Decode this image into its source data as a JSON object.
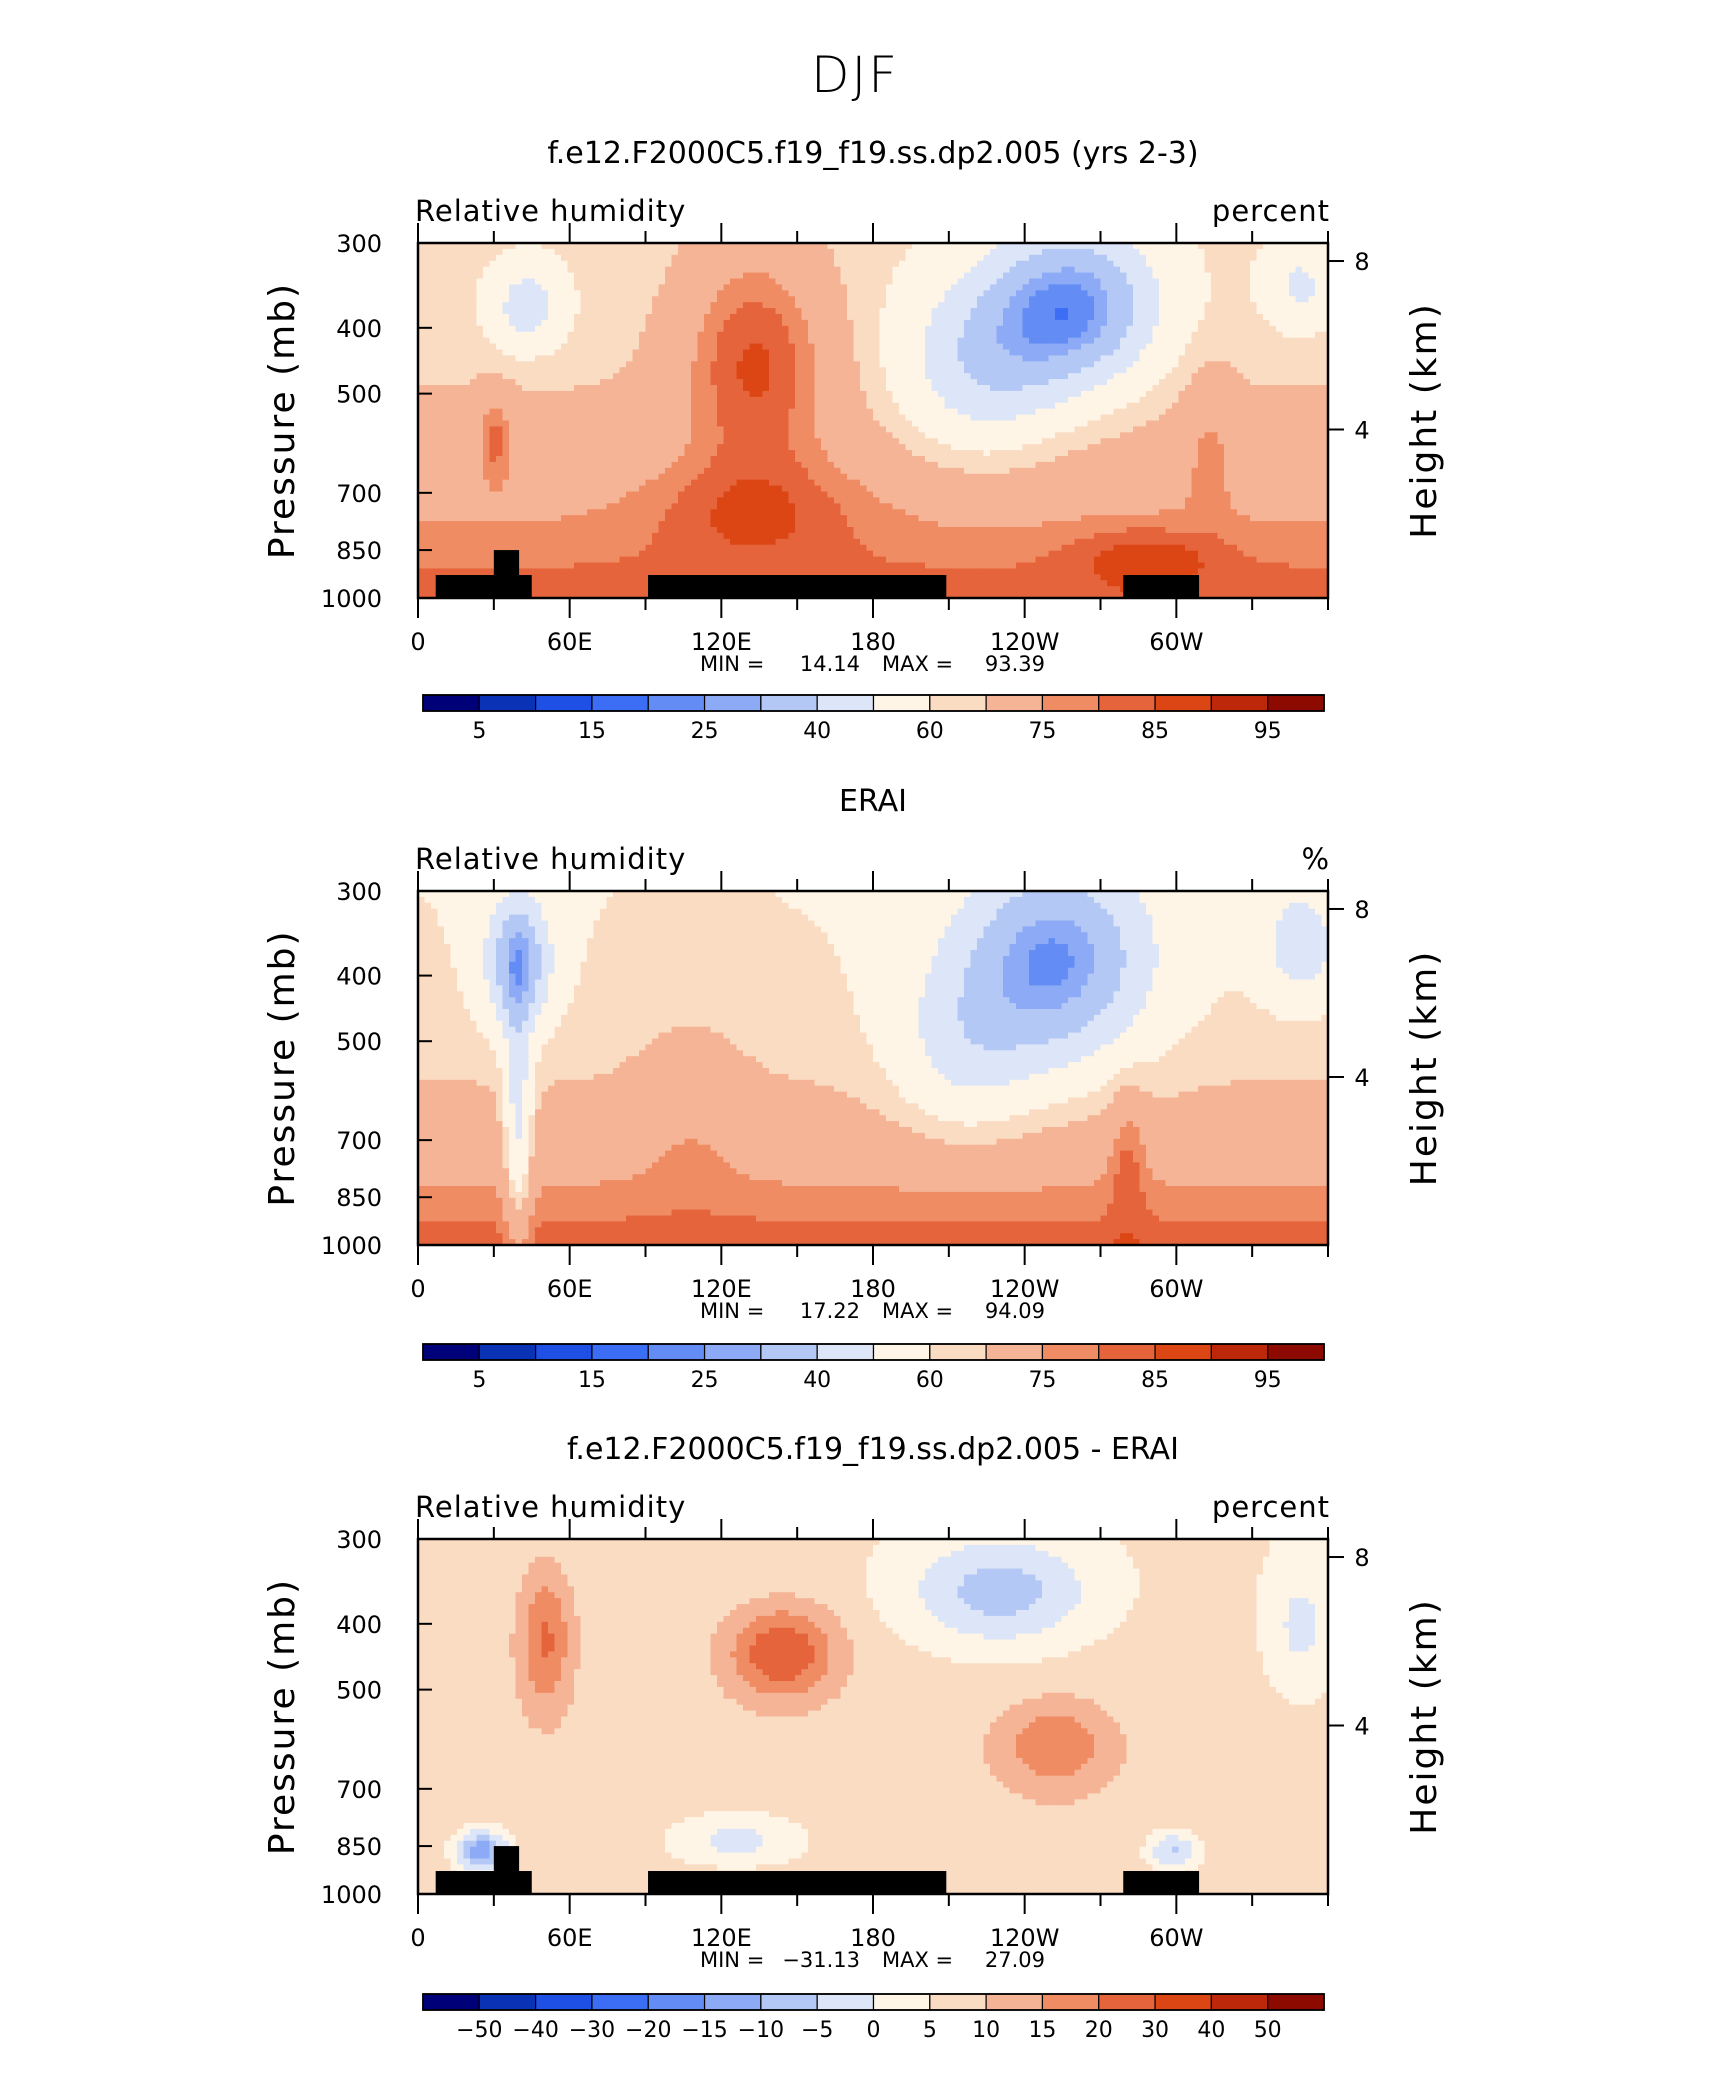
{
  "figure": {
    "title": "DJF"
  },
  "chart_data": [
    {
      "type": "heatmap",
      "panel_title": "f.e12.F2000C5.f19_f19.ss.dp2.005 (yrs 2-3)",
      "variable_label": "Relative humidity",
      "units_label": "percent",
      "xlabel": "",
      "ylabel": "Pressure (mb)",
      "y2label": "Height (km)",
      "x_ticks": [
        "0",
        "60E",
        "120E",
        "180",
        "120W",
        "60W"
      ],
      "x_tick_values": [
        0,
        60,
        120,
        180,
        240,
        300
      ],
      "xlim": [
        0,
        360
      ],
      "y_ticks": [
        "300",
        "400",
        "500",
        "700",
        "850",
        "1000"
      ],
      "y_tick_values": [
        300,
        400,
        500,
        700,
        850,
        1000
      ],
      "ylim": [
        1000,
        300
      ],
      "y2_ticks": [
        "4",
        "8"
      ],
      "y2_tick_values": [
        4,
        8
      ],
      "min_label": "MIN =",
      "min_value": "14.14",
      "max_label": "MAX =",
      "max_value": "93.39",
      "min_num": 14.14,
      "max_num": 93.39,
      "colorbar_levels": [
        "5",
        "10",
        "15",
        "20",
        "25",
        "30",
        "40",
        "50",
        "60",
        "65",
        "75",
        "80",
        "85",
        "90",
        "95"
      ],
      "colorbar_label_indices": [
        0,
        2,
        4,
        6,
        8,
        10,
        12,
        14
      ],
      "colorbar_colors": [
        "#000078",
        "#0a32b4",
        "#1e50e6",
        "#3c6ef5",
        "#648cf5",
        "#8caaf5",
        "#b4c8f5",
        "#dce6f8",
        "#fff5e6",
        "#fadcc3",
        "#f5b496",
        "#f08c64",
        "#e6643c",
        "#dc4614",
        "#be280a",
        "#8c0a00"
      ],
      "land_blocks_lon": [
        [
          7,
          45
        ],
        [
          30,
          40
        ],
        [
          91,
          209
        ],
        [
          279,
          309
        ]
      ],
      "land_blocks_p": [
        [
          925,
          1000
        ],
        [
          850,
          1000
        ],
        [
          925,
          1000
        ],
        [
          925,
          1000
        ]
      ]
    },
    {
      "type": "heatmap",
      "panel_title": "ERAI",
      "variable_label": "Relative humidity",
      "units_label": "%",
      "xlabel": "",
      "ylabel": "Pressure (mb)",
      "y2label": "Height (km)",
      "x_ticks": [
        "0",
        "60E",
        "120E",
        "180",
        "120W",
        "60W"
      ],
      "x_tick_values": [
        0,
        60,
        120,
        180,
        240,
        300
      ],
      "xlim": [
        0,
        360
      ],
      "y_ticks": [
        "300",
        "400",
        "500",
        "700",
        "850",
        "1000"
      ],
      "y_tick_values": [
        300,
        400,
        500,
        700,
        850,
        1000
      ],
      "ylim": [
        1000,
        300
      ],
      "y2_ticks": [
        "4",
        "8"
      ],
      "y2_tick_values": [
        4,
        8
      ],
      "min_label": "MIN =",
      "min_value": "17.22",
      "max_label": "MAX =",
      "max_value": "94.09",
      "min_num": 17.22,
      "max_num": 94.09,
      "colorbar_levels": [
        "5",
        "10",
        "15",
        "20",
        "25",
        "30",
        "40",
        "50",
        "60",
        "65",
        "75",
        "80",
        "85",
        "90",
        "95"
      ],
      "colorbar_label_indices": [
        0,
        2,
        4,
        6,
        8,
        10,
        12,
        14
      ],
      "colorbar_colors": [
        "#000078",
        "#0a32b4",
        "#1e50e6",
        "#3c6ef5",
        "#648cf5",
        "#8caaf5",
        "#b4c8f5",
        "#dce6f8",
        "#fff5e6",
        "#fadcc3",
        "#f5b496",
        "#f08c64",
        "#e6643c",
        "#dc4614",
        "#be280a",
        "#8c0a00"
      ],
      "land_blocks_lon": [],
      "land_blocks_p": []
    },
    {
      "type": "heatmap",
      "panel_title": "f.e12.F2000C5.f19_f19.ss.dp2.005 - ERAI",
      "variable_label": "Relative humidity",
      "units_label": "percent",
      "xlabel": "",
      "ylabel": "Pressure (mb)",
      "y2label": "Height (km)",
      "x_ticks": [
        "0",
        "60E",
        "120E",
        "180",
        "120W",
        "60W"
      ],
      "x_tick_values": [
        0,
        60,
        120,
        180,
        240,
        300
      ],
      "xlim": [
        0,
        360
      ],
      "y_ticks": [
        "300",
        "400",
        "500",
        "700",
        "850",
        "1000"
      ],
      "y_tick_values": [
        300,
        400,
        500,
        700,
        850,
        1000
      ],
      "ylim": [
        1000,
        300
      ],
      "y2_ticks": [
        "4",
        "8"
      ],
      "y2_tick_values": [
        4,
        8
      ],
      "min_label": "MIN =",
      "min_value": "−31.13",
      "max_label": "MAX =",
      "max_value": "27.09",
      "min_num": -31.13,
      "max_num": 27.09,
      "colorbar_levels": [
        "−50",
        "−40",
        "−30",
        "−20",
        "−15",
        "−10",
        "−5",
        "0",
        "5",
        "10",
        "15",
        "20",
        "30",
        "40",
        "50"
      ],
      "colorbar_label_indices": [
        0,
        1,
        2,
        3,
        4,
        5,
        6,
        7,
        8,
        9,
        10,
        11,
        12,
        13,
        14
      ],
      "colorbar_colors": [
        "#000078",
        "#0a32b4",
        "#1e50e6",
        "#3c6ef5",
        "#648cf5",
        "#8caaf5",
        "#b4c8f5",
        "#dce6f8",
        "#fff5e6",
        "#fadcc3",
        "#f5b496",
        "#f08c64",
        "#e6643c",
        "#dc4614",
        "#be280a",
        "#8c0a00"
      ],
      "land_blocks_lon": [
        [
          7,
          45
        ],
        [
          30,
          40
        ],
        [
          91,
          209
        ],
        [
          279,
          309
        ]
      ],
      "land_blocks_p": [
        [
          925,
          1000
        ],
        [
          850,
          1000
        ],
        [
          925,
          1000
        ],
        [
          925,
          1000
        ]
      ]
    }
  ]
}
